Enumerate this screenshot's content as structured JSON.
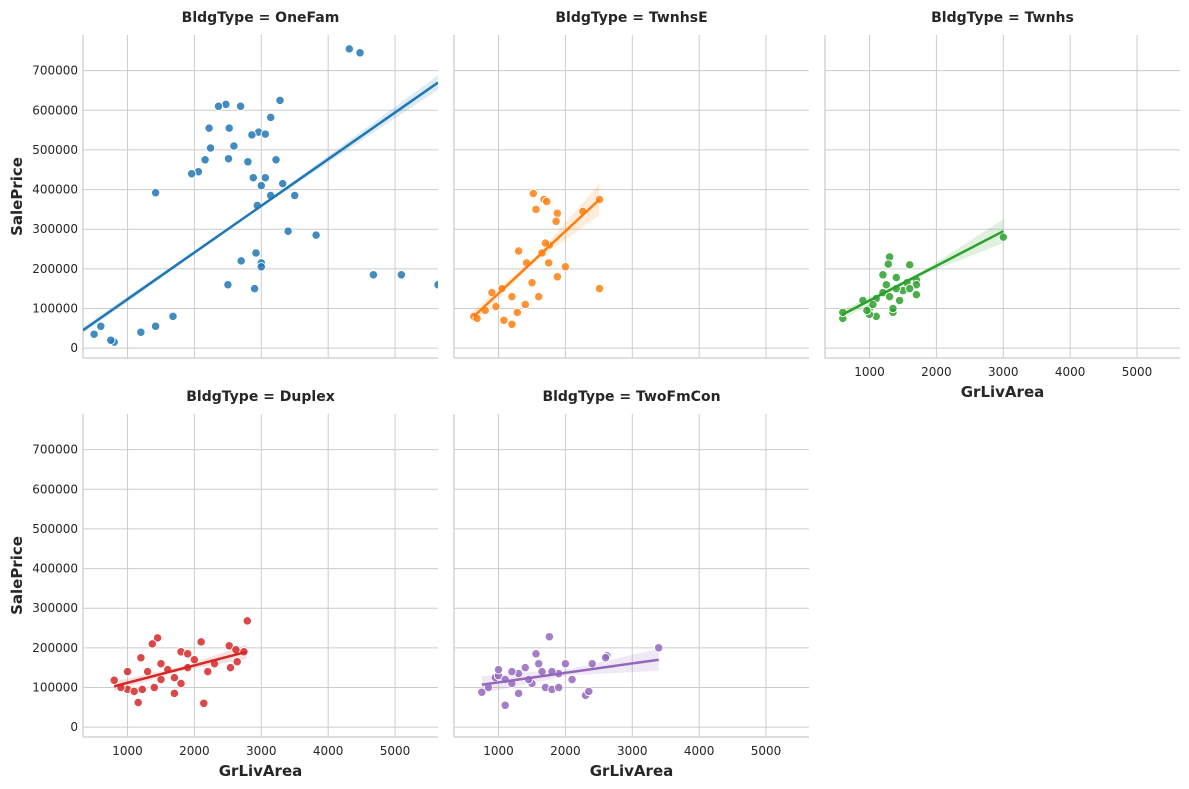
{
  "chart_data": {
    "type": "scatter",
    "facet_variable": "BldgType",
    "x_variable": "GrLivArea",
    "y_variable": "SalePrice",
    "xlim": [
      334,
      5642
    ],
    "ylim": [
      -25000,
      790000
    ],
    "x_ticks": [
      "1000",
      "2000",
      "3000",
      "4000",
      "5000"
    ],
    "y_ticks": [
      "0",
      "100000",
      "200000",
      "300000",
      "400000",
      "500000",
      "600000",
      "700000"
    ],
    "grid": true,
    "regression": true,
    "confidence_band": true,
    "panels": [
      {
        "title": "BldgType = OneFam",
        "category": "OneFam",
        "color": "#1f77b4",
        "show_xlabel": false,
        "show_ylabel": true,
        "show_xticks": false,
        "show_yticks": true,
        "fit": {
          "x": [
            334,
            5642
          ],
          "y": [
            45000,
            670000
          ]
        },
        "band_half_width": {
          "left": 8000,
          "center": 3000,
          "right": 18000
        },
        "points": [
          [
            4316,
            755000
          ],
          [
            4476,
            745000
          ],
          [
            2470,
            615000
          ],
          [
            2360,
            610000
          ],
          [
            2690,
            610000
          ],
          [
            3279,
            625000
          ],
          [
            3140,
            582000
          ],
          [
            2960,
            545000
          ],
          [
            2860,
            538000
          ],
          [
            2520,
            555000
          ],
          [
            2220,
            555000
          ],
          [
            3060,
            540000
          ],
          [
            2590,
            510000
          ],
          [
            2240,
            505000
          ],
          [
            2800,
            470000
          ],
          [
            3220,
            475000
          ],
          [
            2510,
            478000
          ],
          [
            2160,
            475000
          ],
          [
            2060,
            445000
          ],
          [
            1960,
            440000
          ],
          [
            2880,
            430000
          ],
          [
            3060,
            430000
          ],
          [
            3000,
            410000
          ],
          [
            3320,
            415000
          ],
          [
            1420,
            392000
          ],
          [
            3140,
            385000
          ],
          [
            2940,
            360000
          ],
          [
            3500,
            385000
          ],
          [
            3820,
            285000
          ],
          [
            3400,
            295000
          ],
          [
            4676,
            185000
          ],
          [
            5095,
            185000
          ],
          [
            5642,
            160000
          ],
          [
            3000,
            215000
          ],
          [
            3000,
            205000
          ],
          [
            2920,
            240000
          ],
          [
            2900,
            150000
          ],
          [
            2700,
            220000
          ],
          [
            2500,
            160000
          ],
          [
            1200,
            40000
          ],
          [
            800,
            15000
          ],
          [
            750,
            20000
          ],
          [
            1420,
            55000
          ],
          [
            1680,
            80000
          ],
          [
            500,
            35000
          ],
          [
            600,
            55000
          ]
        ]
      },
      {
        "title": "BldgType = TwnhsE",
        "category": "TwnhsE",
        "color": "#ff7f0e",
        "show_xlabel": false,
        "show_ylabel": false,
        "show_xticks": false,
        "show_yticks": false,
        "fit": {
          "x": [
            630,
            2510
          ],
          "y": [
            80000,
            375000
          ]
        },
        "band_half_width": {
          "left": 15000,
          "center": 6000,
          "right": 40000
        },
        "points": [
          [
            2510,
            375000
          ],
          [
            1520,
            390000
          ],
          [
            1680,
            375000
          ],
          [
            1720,
            370000
          ],
          [
            1560,
            350000
          ],
          [
            1880,
            340000
          ],
          [
            1860,
            320000
          ],
          [
            2260,
            345000
          ],
          [
            2510,
            150000
          ],
          [
            2000,
            205000
          ],
          [
            1280,
            90000
          ],
          [
            1080,
            70000
          ],
          [
            960,
            105000
          ],
          [
            800,
            95000
          ],
          [
            630,
            80000
          ],
          [
            680,
            75000
          ],
          [
            1200,
            60000
          ],
          [
            1420,
            215000
          ],
          [
            1300,
            245000
          ],
          [
            1650,
            240000
          ],
          [
            1760,
            260000
          ],
          [
            1700,
            265000
          ],
          [
            1500,
            165000
          ],
          [
            1750,
            215000
          ],
          [
            1880,
            180000
          ],
          [
            1050,
            150000
          ],
          [
            900,
            140000
          ],
          [
            1400,
            110000
          ],
          [
            1600,
            130000
          ],
          [
            1200,
            130000
          ]
        ]
      },
      {
        "title": "BldgType = Twnhs",
        "category": "Twnhs",
        "color": "#2ca02c",
        "show_xlabel": true,
        "show_ylabel": false,
        "show_xticks": true,
        "show_yticks": false,
        "fit": {
          "x": [
            600,
            3000
          ],
          "y": [
            85000,
            295000
          ]
        },
        "band_half_width": {
          "left": 12000,
          "center": 5000,
          "right": 30000
        },
        "points": [
          [
            3000,
            280000
          ],
          [
            1300,
            230000
          ],
          [
            1280,
            212000
          ],
          [
            1600,
            210000
          ],
          [
            1200,
            185000
          ],
          [
            1700,
            172000
          ],
          [
            1700,
            160000
          ],
          [
            1560,
            165000
          ],
          [
            1400,
            178000
          ],
          [
            1700,
            135000
          ],
          [
            1500,
            145000
          ],
          [
            1600,
            150000
          ],
          [
            600,
            75000
          ],
          [
            600,
            90000
          ],
          [
            900,
            120000
          ],
          [
            1000,
            100000
          ],
          [
            1100,
            80000
          ],
          [
            1000,
            85000
          ],
          [
            1350,
            90000
          ],
          [
            1350,
            100000
          ],
          [
            1200,
            140000
          ],
          [
            1100,
            125000
          ],
          [
            1250,
            160000
          ],
          [
            1050,
            110000
          ],
          [
            1300,
            130000
          ],
          [
            960,
            95000
          ],
          [
            1400,
            150000
          ],
          [
            1450,
            120000
          ]
        ]
      },
      {
        "title": "BldgType = Duplex",
        "category": "Duplex",
        "color": "#d62728",
        "show_xlabel": true,
        "show_ylabel": true,
        "show_xticks": true,
        "show_yticks": true,
        "fit": {
          "x": [
            800,
            2780
          ],
          "y": [
            103000,
            190000
          ]
        },
        "band_half_width": {
          "left": 12000,
          "center": 5000,
          "right": 18000
        },
        "points": [
          [
            2790,
            268000
          ],
          [
            1450,
            225000
          ],
          [
            2100,
            215000
          ],
          [
            1370,
            210000
          ],
          [
            2520,
            205000
          ],
          [
            2620,
            195000
          ],
          [
            2740,
            190000
          ],
          [
            2540,
            150000
          ],
          [
            2640,
            165000
          ],
          [
            2140,
            60000
          ],
          [
            1160,
            62000
          ],
          [
            1000,
            95000
          ],
          [
            1100,
            90000
          ],
          [
            1220,
            95000
          ],
          [
            1500,
            120000
          ],
          [
            1700,
            125000
          ],
          [
            1800,
            190000
          ],
          [
            1900,
            150000
          ],
          [
            800,
            118000
          ],
          [
            900,
            100000
          ],
          [
            1000,
            140000
          ],
          [
            1200,
            175000
          ],
          [
            1300,
            140000
          ],
          [
            1400,
            100000
          ],
          [
            1600,
            145000
          ],
          [
            1700,
            85000
          ],
          [
            1800,
            110000
          ],
          [
            2000,
            170000
          ],
          [
            2200,
            140000
          ],
          [
            2300,
            160000
          ],
          [
            1900,
            185000
          ],
          [
            1500,
            160000
          ]
        ]
      },
      {
        "title": "BldgType = TwoFmCon",
        "category": "TwoFmCon",
        "color": "#9467bd",
        "show_xlabel": true,
        "show_ylabel": false,
        "show_xticks": true,
        "show_yticks": false,
        "fit": {
          "x": [
            750,
            3395
          ],
          "y": [
            107000,
            170000
          ]
        },
        "band_half_width": {
          "left": 22000,
          "center": 8000,
          "right": 28000
        },
        "points": [
          [
            3395,
            200000
          ],
          [
            1760,
            228000
          ],
          [
            2620,
            180000
          ],
          [
            1560,
            185000
          ],
          [
            1600,
            160000
          ],
          [
            2000,
            160000
          ],
          [
            2400,
            160000
          ],
          [
            1400,
            150000
          ],
          [
            1300,
            135000
          ],
          [
            1100,
            55000
          ],
          [
            750,
            88000
          ],
          [
            850,
            100000
          ],
          [
            950,
            125000
          ],
          [
            1000,
            130000
          ],
          [
            1100,
            120000
          ],
          [
            1200,
            110000
          ],
          [
            1300,
            85000
          ],
          [
            1500,
            110000
          ],
          [
            1700,
            100000
          ],
          [
            1800,
            95000
          ],
          [
            1900,
            100000
          ],
          [
            2100,
            120000
          ],
          [
            2300,
            80000
          ],
          [
            2350,
            90000
          ],
          [
            1650,
            140000
          ],
          [
            1450,
            120000
          ],
          [
            1900,
            135000
          ],
          [
            1000,
            145000
          ],
          [
            1200,
            140000
          ],
          [
            1800,
            140000
          ],
          [
            2600,
            175000
          ]
        ]
      }
    ]
  }
}
